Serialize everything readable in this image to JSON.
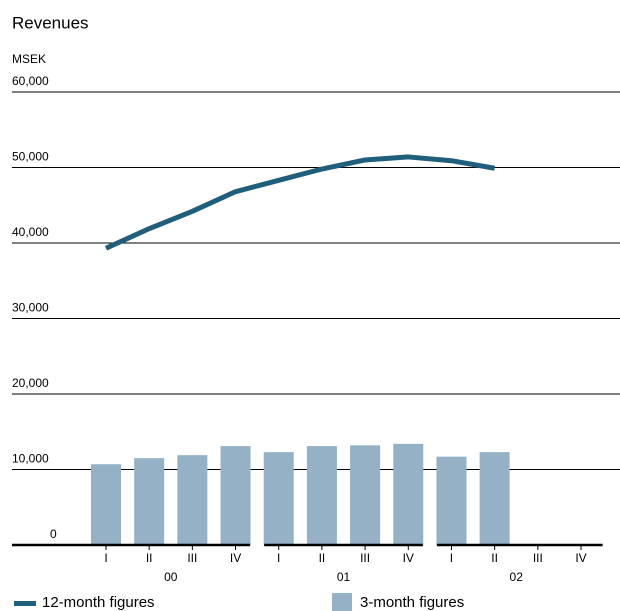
{
  "chart_data": {
    "type": "bar-line",
    "title": "Revenues",
    "y_unit": "MSEK",
    "categories": [
      "I",
      "II",
      "III",
      "IV",
      "I",
      "II",
      "III",
      "IV",
      "I",
      "II",
      "III",
      "IV"
    ],
    "groups": [
      "00",
      "01",
      "02"
    ],
    "series": [
      {
        "name": "12-month figures",
        "type": "line",
        "color": "#1f5f7b",
        "values": [
          39300,
          41900,
          44200,
          46800,
          48300,
          49800,
          51000,
          51400,
          50900,
          49900,
          null,
          null
        ]
      },
      {
        "name": "3-month figures",
        "type": "bar",
        "color": "#94b1c5",
        "values": [
          10700,
          11500,
          11900,
          13100,
          12300,
          13100,
          13200,
          13400,
          11700,
          12300,
          null,
          null
        ]
      }
    ],
    "ylim": [
      0,
      60000
    ],
    "yticks": [
      0,
      {
        "value": 10000,
        "label": "10,000"
      },
      {
        "value": 20000,
        "label": "20,000"
      },
      {
        "value": 30000,
        "label": "30,000"
      },
      {
        "value": 40000,
        "label": "40,000"
      },
      {
        "value": 50000,
        "label": "50,000"
      },
      {
        "value": 60000,
        "label": "60,000"
      }
    ],
    "grid": true
  }
}
